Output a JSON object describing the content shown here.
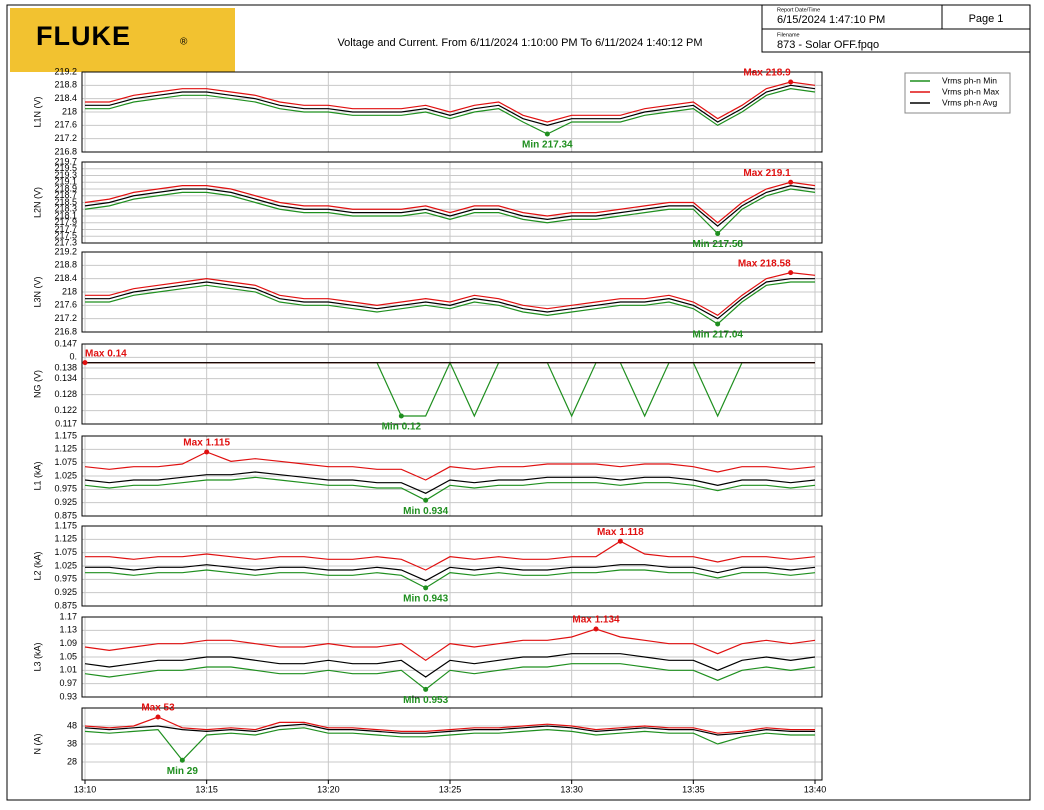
{
  "header": {
    "logo": "FLUKE",
    "logo_mark": "®",
    "title": "Voltage and Current. From 6/11/2024 1:10:00 PM To 6/11/2024 1:40:12 PM",
    "report_label": "Report Date/Time",
    "report_date": "6/15/2024 1:47:10 PM",
    "page": "Page 1",
    "filename_label": "Filename",
    "filename": "873 - Solar OFF.fpqo"
  },
  "chart_data": [
    {
      "type": "line",
      "y_label": "L1N (V)",
      "ylim": [
        216.8,
        219.2
      ],
      "yticks": [
        216.8,
        217.2,
        217.6,
        218,
        218.4,
        218.8,
        219.2
      ],
      "grid": true,
      "annotations": [
        {
          "text": "Max 218.9"
        },
        {
          "text": "Min 217.34"
        }
      ],
      "series": [
        {
          "name": "Vrms ph-n Min",
          "color": "#1f8f1f",
          "values": [
            218.1,
            218.1,
            218.3,
            218.4,
            218.5,
            218.5,
            218.4,
            218.3,
            218.1,
            218.0,
            218.0,
            217.9,
            217.9,
            217.9,
            218.0,
            217.8,
            218.0,
            218.1,
            217.7,
            217.34,
            217.7,
            217.7,
            217.7,
            217.9,
            218.0,
            218.1,
            217.6,
            218.0,
            218.5,
            218.7,
            218.6
          ]
        },
        {
          "name": "Vrms ph-n Max",
          "color": "#e01010",
          "values": [
            218.3,
            218.3,
            218.5,
            218.6,
            218.7,
            218.7,
            218.6,
            218.5,
            218.3,
            218.2,
            218.2,
            218.1,
            218.1,
            218.1,
            218.2,
            218.0,
            218.2,
            218.3,
            217.9,
            217.7,
            217.9,
            217.9,
            217.9,
            218.1,
            218.2,
            218.3,
            217.8,
            218.2,
            218.7,
            218.9,
            218.8
          ]
        },
        {
          "name": "Vrms ph-n Avg",
          "color": "#000000",
          "values": [
            218.2,
            218.2,
            218.4,
            218.5,
            218.6,
            218.6,
            218.5,
            218.4,
            218.2,
            218.1,
            218.1,
            218.0,
            218.0,
            218.0,
            218.1,
            217.9,
            218.1,
            218.2,
            217.8,
            217.6,
            217.8,
            217.8,
            217.8,
            218.0,
            218.1,
            218.2,
            217.7,
            218.1,
            218.6,
            218.8,
            218.7
          ]
        }
      ]
    },
    {
      "type": "line",
      "y_label": "L2N (V)",
      "ylim": [
        217.3,
        219.7
      ],
      "yticks": [
        217.3,
        217.5,
        217.7,
        217.9,
        218.1,
        218.3,
        218.5,
        218.7,
        218.9,
        219.1,
        219.3,
        219.5,
        219.7
      ],
      "grid": true,
      "annotations": [
        {
          "text": "Max 219.1"
        },
        {
          "text": "Min 217.58"
        }
      ],
      "series": [
        {
          "color": "#1f8f1f",
          "values": [
            218.3,
            218.4,
            218.6,
            218.7,
            218.8,
            218.8,
            218.7,
            218.5,
            218.3,
            218.2,
            218.2,
            218.1,
            218.1,
            218.1,
            218.2,
            218.0,
            218.2,
            218.2,
            218.0,
            217.9,
            218.0,
            218.0,
            218.1,
            218.2,
            218.3,
            218.3,
            217.58,
            218.3,
            218.7,
            218.9,
            218.8
          ]
        },
        {
          "color": "#e01010",
          "values": [
            218.5,
            218.6,
            218.8,
            218.9,
            219.0,
            219.0,
            218.9,
            218.7,
            218.5,
            218.4,
            218.4,
            218.3,
            218.3,
            218.3,
            218.4,
            218.2,
            218.4,
            218.4,
            218.2,
            218.1,
            218.2,
            218.2,
            218.3,
            218.4,
            218.5,
            218.5,
            217.9,
            218.5,
            218.9,
            219.1,
            219.0
          ]
        },
        {
          "color": "#000000",
          "values": [
            218.4,
            218.5,
            218.7,
            218.8,
            218.9,
            218.9,
            218.8,
            218.6,
            218.4,
            218.3,
            218.3,
            218.2,
            218.2,
            218.2,
            218.3,
            218.1,
            218.3,
            218.3,
            218.1,
            218.0,
            218.1,
            218.1,
            218.2,
            218.3,
            218.4,
            218.4,
            217.8,
            218.4,
            218.8,
            219.0,
            218.9
          ]
        }
      ]
    },
    {
      "type": "line",
      "y_label": "L3N (V)",
      "ylim": [
        216.8,
        219.2
      ],
      "yticks": [
        216.8,
        217.2,
        217.6,
        218,
        218.4,
        218.8,
        219.2
      ],
      "grid": true,
      "annotations": [
        {
          "text": "Max 218.58"
        },
        {
          "text": "Min 217.04"
        }
      ],
      "series": [
        {
          "color": "#1f8f1f",
          "values": [
            217.7,
            217.7,
            217.9,
            218.0,
            218.1,
            218.2,
            218.1,
            218.0,
            217.7,
            217.6,
            217.6,
            217.5,
            217.4,
            217.5,
            217.6,
            217.5,
            217.7,
            217.6,
            217.4,
            217.3,
            217.4,
            217.5,
            217.6,
            217.6,
            217.7,
            217.5,
            217.04,
            217.7,
            218.2,
            218.3,
            218.3
          ]
        },
        {
          "color": "#e01010",
          "values": [
            217.9,
            217.9,
            218.1,
            218.2,
            218.3,
            218.4,
            218.3,
            218.2,
            217.9,
            217.8,
            217.8,
            217.7,
            217.6,
            217.7,
            217.8,
            217.7,
            217.9,
            217.8,
            217.6,
            217.5,
            217.6,
            217.7,
            217.8,
            217.8,
            217.9,
            217.7,
            217.3,
            217.9,
            218.4,
            218.58,
            218.5
          ]
        },
        {
          "color": "#000000",
          "values": [
            217.8,
            217.8,
            218.0,
            218.1,
            218.2,
            218.3,
            218.2,
            218.1,
            217.8,
            217.7,
            217.7,
            217.6,
            217.5,
            217.6,
            217.7,
            217.6,
            217.8,
            217.7,
            217.5,
            217.4,
            217.5,
            217.6,
            217.7,
            217.7,
            217.8,
            217.6,
            217.2,
            217.8,
            218.3,
            218.4,
            218.4
          ]
        }
      ]
    },
    {
      "type": "line",
      "y_label": "NG (V)",
      "ylim": [
        0.117,
        0.147
      ],
      "yticks": [
        0.117,
        0.122,
        0.128,
        0.134,
        0.138,
        {
          "value": 0.142,
          "label": "0."
        },
        0.147
      ],
      "grid": true,
      "annotations": [
        {
          "text": "Max 0.14"
        },
        {
          "text": "Min 0.12"
        }
      ],
      "series": [
        {
          "color": "#1f8f1f",
          "values": [
            0.14,
            0.14,
            0.14,
            0.14,
            0.14,
            0.14,
            0.14,
            0.14,
            0.14,
            0.14,
            0.14,
            0.14,
            0.14,
            0.12,
            0.12,
            0.14,
            0.12,
            0.14,
            0.14,
            0.14,
            0.12,
            0.14,
            0.14,
            0.12,
            0.14,
            0.14,
            0.12,
            0.14,
            0.14,
            0.14,
            0.14
          ]
        },
        {
          "color": "#e01010",
          "values": [
            0.14,
            0.14,
            0.14,
            0.14,
            0.14,
            0.14,
            0.14,
            0.14,
            0.14,
            0.14,
            0.14,
            0.14,
            0.14,
            0.14,
            0.14,
            0.14,
            0.14,
            0.14,
            0.14,
            0.14,
            0.14,
            0.14,
            0.14,
            0.14,
            0.14,
            0.14,
            0.14,
            0.14,
            0.14,
            0.14,
            0.14
          ]
        },
        {
          "color": "#000000",
          "values": [
            0.14,
            0.14,
            0.14,
            0.14,
            0.14,
            0.14,
            0.14,
            0.14,
            0.14,
            0.14,
            0.14,
            0.14,
            0.14,
            0.14,
            0.14,
            0.14,
            0.14,
            0.14,
            0.14,
            0.14,
            0.14,
            0.14,
            0.14,
            0.14,
            0.14,
            0.14,
            0.14,
            0.14,
            0.14,
            0.14,
            0.14
          ]
        }
      ]
    },
    {
      "type": "line",
      "y_label": "L1 (kA)",
      "ylim": [
        0.875,
        1.175
      ],
      "yticks": [
        0.875,
        0.925,
        0.975,
        1.025,
        1.075,
        1.125,
        1.175
      ],
      "grid": true,
      "annotations": [
        {
          "text": "Max 1.115"
        },
        {
          "text": "Min 0.934"
        }
      ],
      "series": [
        {
          "color": "#1f8f1f",
          "values": [
            0.99,
            0.98,
            0.99,
            0.99,
            1.0,
            1.01,
            1.01,
            1.02,
            1.01,
            1.0,
            0.99,
            0.99,
            0.98,
            0.98,
            0.934,
            0.99,
            0.98,
            0.99,
            0.99,
            1.0,
            1.0,
            1.0,
            0.99,
            1.0,
            1.0,
            0.99,
            0.97,
            0.99,
            0.99,
            0.98,
            0.99
          ]
        },
        {
          "color": "#e01010",
          "values": [
            1.06,
            1.05,
            1.06,
            1.06,
            1.07,
            1.115,
            1.08,
            1.09,
            1.08,
            1.07,
            1.06,
            1.06,
            1.05,
            1.05,
            1.01,
            1.06,
            1.05,
            1.06,
            1.06,
            1.07,
            1.07,
            1.07,
            1.06,
            1.07,
            1.07,
            1.06,
            1.04,
            1.06,
            1.06,
            1.05,
            1.06
          ]
        },
        {
          "color": "#000000",
          "values": [
            1.01,
            1.0,
            1.01,
            1.01,
            1.02,
            1.03,
            1.03,
            1.04,
            1.03,
            1.02,
            1.01,
            1.01,
            1.0,
            1.0,
            0.96,
            1.01,
            1.0,
            1.01,
            1.01,
            1.02,
            1.02,
            1.02,
            1.01,
            1.02,
            1.02,
            1.01,
            0.99,
            1.01,
            1.01,
            1.0,
            1.01
          ]
        }
      ]
    },
    {
      "type": "line",
      "y_label": "L2 (kA)",
      "ylim": [
        0.875,
        1.175
      ],
      "yticks": [
        0.875,
        0.925,
        0.975,
        1.025,
        1.075,
        1.125,
        1.175
      ],
      "grid": true,
      "annotations": [
        {
          "text": "Max 1.118"
        },
        {
          "text": "Min 0.943"
        }
      ],
      "series": [
        {
          "color": "#1f8f1f",
          "values": [
            1.0,
            1.0,
            0.99,
            1.0,
            1.0,
            1.01,
            1.0,
            0.99,
            1.0,
            1.0,
            0.99,
            0.99,
            1.0,
            0.99,
            0.943,
            1.0,
            0.99,
            1.0,
            0.99,
            0.99,
            1.0,
            1.0,
            1.01,
            1.01,
            1.0,
            1.0,
            0.98,
            1.0,
            1.0,
            0.99,
            1.0
          ]
        },
        {
          "color": "#e01010",
          "values": [
            1.06,
            1.06,
            1.05,
            1.06,
            1.06,
            1.07,
            1.06,
            1.05,
            1.06,
            1.06,
            1.05,
            1.05,
            1.06,
            1.05,
            1.01,
            1.06,
            1.05,
            1.06,
            1.05,
            1.05,
            1.06,
            1.06,
            1.118,
            1.07,
            1.06,
            1.06,
            1.04,
            1.06,
            1.06,
            1.05,
            1.06
          ]
        },
        {
          "color": "#000000",
          "values": [
            1.02,
            1.02,
            1.01,
            1.02,
            1.02,
            1.03,
            1.02,
            1.01,
            1.02,
            1.02,
            1.01,
            1.01,
            1.02,
            1.01,
            0.97,
            1.02,
            1.01,
            1.02,
            1.01,
            1.01,
            1.02,
            1.02,
            1.03,
            1.03,
            1.02,
            1.02,
            1.0,
            1.02,
            1.02,
            1.01,
            1.02
          ]
        }
      ]
    },
    {
      "type": "line",
      "y_label": "L3 (kA)",
      "ylim": [
        0.93,
        1.17
      ],
      "yticks": [
        0.93,
        0.97,
        1.01,
        1.05,
        1.09,
        1.13,
        1.17
      ],
      "grid": true,
      "annotations": [
        {
          "text": "Max 1.134"
        },
        {
          "text": "Min 0.953"
        }
      ],
      "series": [
        {
          "color": "#1f8f1f",
          "values": [
            1.0,
            0.99,
            1.0,
            1.01,
            1.01,
            1.02,
            1.02,
            1.01,
            1.0,
            1.0,
            1.01,
            1.0,
            1.0,
            1.01,
            0.953,
            1.01,
            1.0,
            1.01,
            1.02,
            1.02,
            1.03,
            1.03,
            1.03,
            1.02,
            1.01,
            1.01,
            0.98,
            1.01,
            1.02,
            1.01,
            1.02
          ]
        },
        {
          "color": "#e01010",
          "values": [
            1.08,
            1.07,
            1.08,
            1.09,
            1.09,
            1.1,
            1.1,
            1.09,
            1.08,
            1.08,
            1.09,
            1.08,
            1.08,
            1.09,
            1.04,
            1.09,
            1.08,
            1.09,
            1.1,
            1.1,
            1.11,
            1.134,
            1.11,
            1.1,
            1.09,
            1.09,
            1.06,
            1.09,
            1.1,
            1.09,
            1.1
          ]
        },
        {
          "color": "#000000",
          "values": [
            1.03,
            1.02,
            1.03,
            1.04,
            1.04,
            1.05,
            1.05,
            1.04,
            1.03,
            1.03,
            1.04,
            1.03,
            1.03,
            1.04,
            0.99,
            1.04,
            1.03,
            1.04,
            1.05,
            1.05,
            1.06,
            1.06,
            1.06,
            1.05,
            1.04,
            1.04,
            1.01,
            1.04,
            1.05,
            1.04,
            1.05
          ]
        }
      ]
    },
    {
      "type": "line",
      "y_label": "N (A)",
      "ylim": [
        18,
        58
      ],
      "yticks": [
        28,
        38,
        48
      ],
      "grid": true,
      "xticks": [
        "13:10",
        "13:15",
        "13:20",
        "13:25",
        "13:30",
        "13:35",
        "13:40"
      ],
      "annotations": [
        {
          "text": "Max 53"
        },
        {
          "text": "Min 29"
        }
      ],
      "series": [
        {
          "color": "#1f8f1f",
          "values": [
            45,
            44,
            45,
            46,
            29,
            43,
            44,
            43,
            46,
            47,
            44,
            44,
            43,
            42,
            42,
            43,
            44,
            44,
            45,
            46,
            45,
            43,
            44,
            45,
            44,
            44,
            38,
            42,
            44,
            43,
            43
          ]
        },
        {
          "color": "#e01010",
          "values": [
            48,
            47,
            48,
            53,
            47,
            46,
            47,
            46,
            50,
            50,
            47,
            47,
            46,
            45,
            45,
            46,
            47,
            47,
            48,
            49,
            48,
            46,
            47,
            48,
            47,
            47,
            44,
            45,
            47,
            46,
            46
          ]
        },
        {
          "color": "#000000",
          "values": [
            47,
            46,
            47,
            48,
            46,
            45,
            46,
            45,
            48,
            49,
            46,
            46,
            45,
            44,
            44,
            45,
            46,
            46,
            47,
            48,
            47,
            45,
            46,
            47,
            46,
            46,
            43,
            44,
            46,
            45,
            45
          ]
        }
      ]
    }
  ]
}
